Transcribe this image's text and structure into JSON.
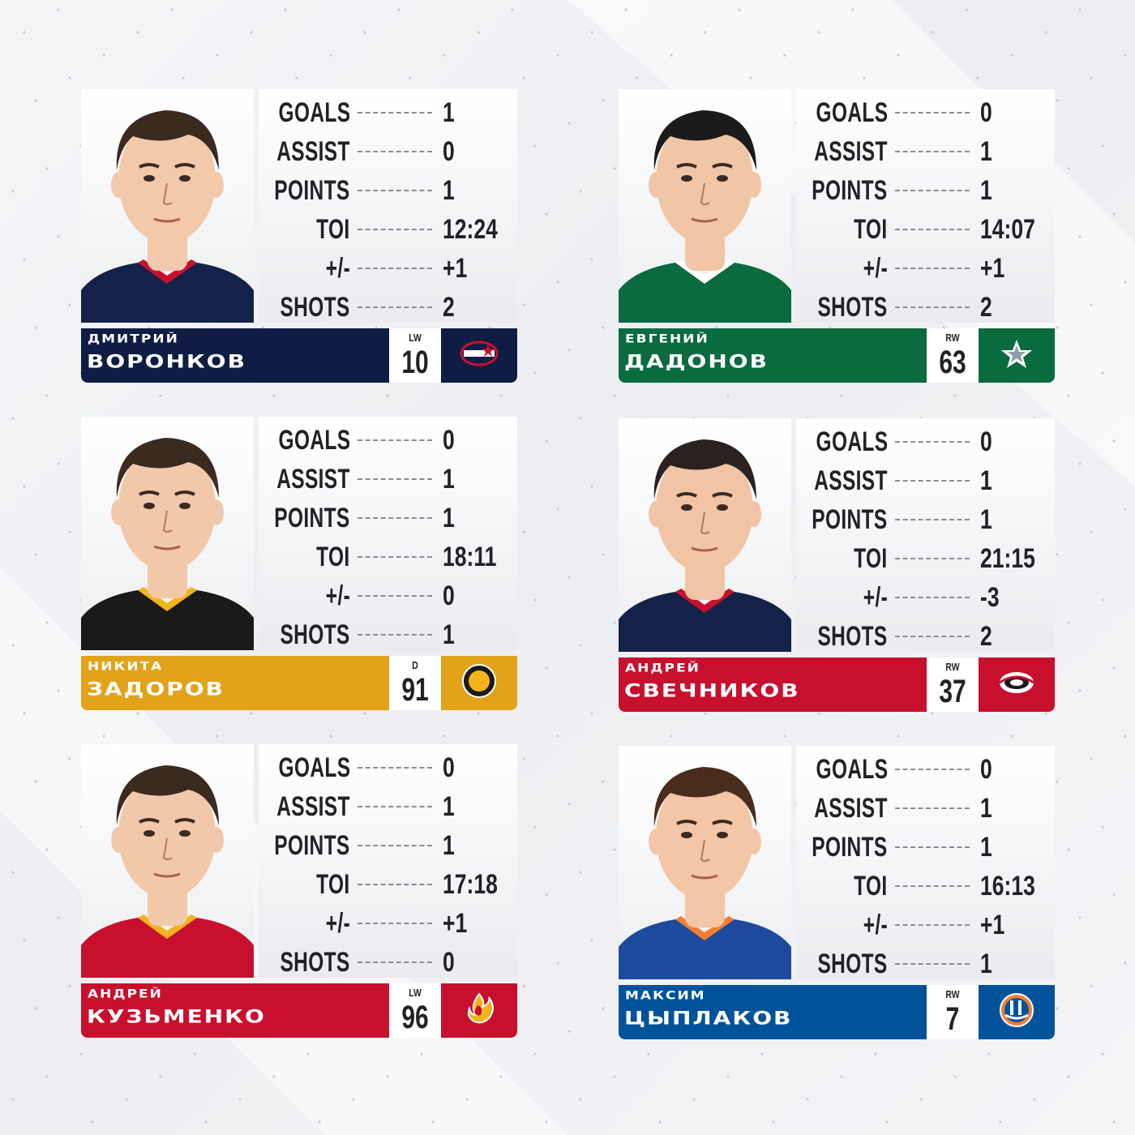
{
  "stat_labels": {
    "goals": "GOALS",
    "assist": "ASSIST",
    "points": "POINTS",
    "toi": "TOI",
    "plus_minus": "+/-",
    "shots": "SHOTS"
  },
  "players": [
    {
      "first_name": "ДМИТРИЙ",
      "last_name": "ВОРОНКОВ",
      "position": "LW",
      "number": "10",
      "goals": "1",
      "assist": "0",
      "points": "1",
      "toi": "12:24",
      "plus_minus": "+1",
      "shots": "2",
      "team_color": "#0f1d44",
      "logo_icon": "blue-jackets-logo-icon",
      "jersey_color": "#14224a",
      "jersey_trim": "#c8102e",
      "hair_color": "#3b2a20",
      "skin_color": "#f2c9ab"
    },
    {
      "first_name": "ЕВГЕНИЙ",
      "last_name": "ДАДОНОВ",
      "position": "RW",
      "number": "63",
      "goals": "0",
      "assist": "1",
      "points": "1",
      "toi": "14:07",
      "plus_minus": "+1",
      "shots": "2",
      "team_color": "#0a6b3f",
      "logo_icon": "stars-logo-icon",
      "jersey_color": "#0a6b3f",
      "jersey_trim": "#ffffff",
      "hair_color": "#1b1a1c",
      "skin_color": "#f0c6a6"
    },
    {
      "first_name": "НИКИТА",
      "last_name": "ЗАДОРОВ",
      "position": "D",
      "number": "91",
      "goals": "0",
      "assist": "1",
      "points": "1",
      "toi": "18:11",
      "plus_minus": "0",
      "shots": "1",
      "team_color": "#e2a219",
      "logo_icon": "bruins-logo-icon",
      "jersey_color": "#1a1a1a",
      "jersey_trim": "#f3b41b",
      "hair_color": "#3a2a20",
      "skin_color": "#f2c8aa"
    },
    {
      "first_name": "АНДРЕЙ",
      "last_name": "СВЕЧНИКОВ",
      "position": "RW",
      "number": "37",
      "goals": "0",
      "assist": "1",
      "points": "1",
      "toi": "21:15",
      "plus_minus": "-3",
      "shots": "2",
      "team_color": "#c8102e",
      "logo_icon": "hurricanes-logo-icon",
      "jersey_color": "#14224a",
      "jersey_trim": "#c8102e",
      "hair_color": "#2a2220",
      "skin_color": "#f0c4a4"
    },
    {
      "first_name": "АНДРЕЙ",
      "last_name": "КУЗЬМЕНКО",
      "position": "LW",
      "number": "96",
      "goals": "0",
      "assist": "1",
      "points": "1",
      "toi": "17:18",
      "plus_minus": "+1",
      "shots": "0",
      "team_color": "#c8102e",
      "logo_icon": "flames-logo-icon",
      "jersey_color": "#c8102e",
      "jersey_trim": "#f3b41b",
      "hair_color": "#3a2a20",
      "skin_color": "#f2c8aa"
    },
    {
      "first_name": "МАКСИМ",
      "last_name": "ЦЫПЛАКОВ",
      "position": "RW",
      "number": "7",
      "goals": "0",
      "assist": "1",
      "points": "1",
      "toi": "16:13",
      "plus_minus": "+1",
      "shots": "1",
      "team_color": "#00539b",
      "logo_icon": "islanders-logo-icon",
      "jersey_color": "#1d4a9c",
      "jersey_trim": "#f47d30",
      "hair_color": "#4a2c1c",
      "skin_color": "#f2c6a6"
    }
  ]
}
